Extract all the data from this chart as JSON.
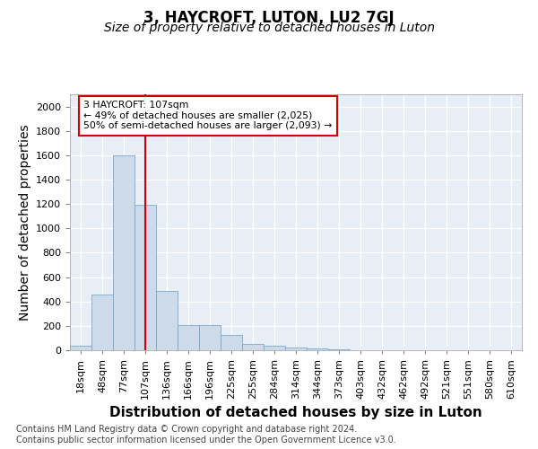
{
  "title": "3, HAYCROFT, LUTON, LU2 7GJ",
  "subtitle": "Size of property relative to detached houses in Luton",
  "xlabel": "Distribution of detached houses by size in Luton",
  "ylabel": "Number of detached properties",
  "bin_labels": [
    "18sqm",
    "48sqm",
    "77sqm",
    "107sqm",
    "136sqm",
    "166sqm",
    "196sqm",
    "225sqm",
    "255sqm",
    "284sqm",
    "314sqm",
    "344sqm",
    "373sqm",
    "403sqm",
    "432sqm",
    "462sqm",
    "492sqm",
    "521sqm",
    "551sqm",
    "580sqm",
    "610sqm"
  ],
  "bar_values": [
    35,
    455,
    1600,
    1195,
    490,
    210,
    210,
    125,
    48,
    38,
    22,
    18,
    8,
    0,
    0,
    0,
    0,
    0,
    0,
    0,
    0
  ],
  "bar_color": "#cddaea",
  "bar_edge_color": "#7aaacf",
  "vline_x_index": 3,
  "vline_color": "#cc0000",
  "annotation_line1": "3 HAYCROFT: 107sqm",
  "annotation_line2": "← 49% of detached houses are smaller (2,025)",
  "annotation_line3": "50% of semi-detached houses are larger (2,093) →",
  "annotation_box_color": "#cc0000",
  "ylim_max": 2100,
  "yticks": [
    0,
    200,
    400,
    600,
    800,
    1000,
    1200,
    1400,
    1600,
    1800,
    2000
  ],
  "footer_text": "Contains HM Land Registry data © Crown copyright and database right 2024.\nContains public sector information licensed under the Open Government Licence v3.0.",
  "bg_color": "#ffffff",
  "plot_bg_color": "#e8eef5",
  "title_fontsize": 12,
  "subtitle_fontsize": 10,
  "axis_label_fontsize": 10,
  "tick_fontsize": 8,
  "footer_fontsize": 7
}
